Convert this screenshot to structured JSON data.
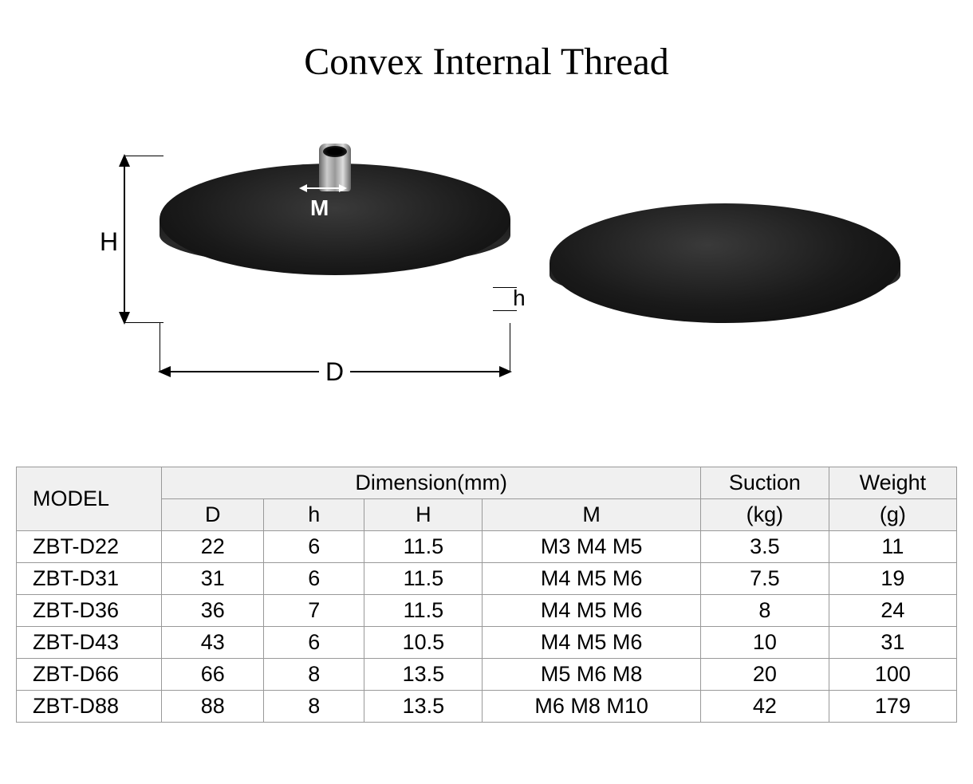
{
  "title": "Convex Internal Thread",
  "labels": {
    "H": "H",
    "D": "D",
    "M": "M",
    "h": "h"
  },
  "table": {
    "headers": {
      "model": "MODEL",
      "dimension": "Dimension(mm)",
      "D": "D",
      "h": "h",
      "H": "H",
      "M": "M",
      "suction_top": "Suction",
      "suction_unit": "(kg)",
      "weight_top": "Weight",
      "weight_unit": "(g)"
    },
    "rows": [
      {
        "model": "ZBT-D22",
        "D": "22",
        "h": "6",
        "H": "11.5",
        "M": "M3 M4 M5",
        "suction": "3.5",
        "weight": "11"
      },
      {
        "model": "ZBT-D31",
        "D": "31",
        "h": "6",
        "H": "11.5",
        "M": "M4 M5 M6",
        "suction": "7.5",
        "weight": "19"
      },
      {
        "model": "ZBT-D36",
        "D": "36",
        "h": "7",
        "H": "11.5",
        "M": "M4 M5 M6",
        "suction": "8",
        "weight": "24"
      },
      {
        "model": "ZBT-D43",
        "D": "43",
        "h": "6",
        "H": "10.5",
        "M": "M4 M5 M6",
        "suction": "10",
        "weight": "31"
      },
      {
        "model": "ZBT-D66",
        "D": "66",
        "h": "8",
        "H": "13.5",
        "M": "M5 M6 M8",
        "suction": "20",
        "weight": "100"
      },
      {
        "model": "ZBT-D88",
        "D": "88",
        "h": "8",
        "H": "13.5",
        "M": "M6 M8 M10",
        "suction": "42",
        "weight": "179"
      }
    ]
  },
  "style": {
    "title_fontsize": 48,
    "title_font": "Times New Roman",
    "table_fontsize": 27,
    "header_bg": "#f0f0f0",
    "border_color": "#999999",
    "disc_color": "#1a1a1a",
    "background": "#ffffff",
    "dim_label_color": "#000000",
    "dim_M_label_color": "#ffffff"
  }
}
